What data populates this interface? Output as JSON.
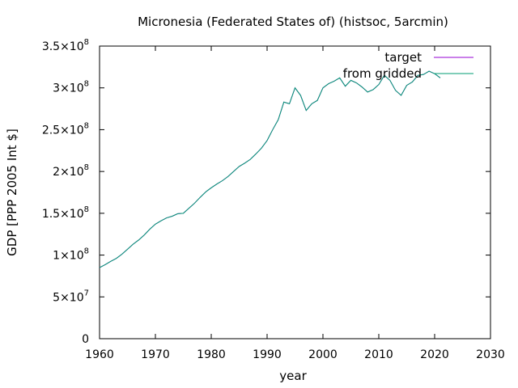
{
  "chart_data": {
    "type": "line",
    "title": "Micronesia (Federated States of) (histsoc, 5arcmin)",
    "xlabel": "year",
    "ylabel": "GDP [PPP 2005 Int $]",
    "xlim": [
      1960,
      2030
    ],
    "ylim": [
      0,
      350000000
    ],
    "grid": false,
    "legend_position": "top-right",
    "x_ticks": [
      {
        "value": 1960,
        "label": "1960"
      },
      {
        "value": 1970,
        "label": "1970"
      },
      {
        "value": 1980,
        "label": "1980"
      },
      {
        "value": 1990,
        "label": "1990"
      },
      {
        "value": 2000,
        "label": "2000"
      },
      {
        "value": 2010,
        "label": "2010"
      },
      {
        "value": 2020,
        "label": "2020"
      },
      {
        "value": 2030,
        "label": "2030"
      }
    ],
    "y_ticks": [
      {
        "value": 0,
        "mantissa": "0",
        "exponent": ""
      },
      {
        "value": 50000000,
        "mantissa": "5×10",
        "exponent": "7"
      },
      {
        "value": 100000000,
        "mantissa": "1×10",
        "exponent": "8"
      },
      {
        "value": 150000000,
        "mantissa": "1.5×10",
        "exponent": "8"
      },
      {
        "value": 200000000,
        "mantissa": "2×10",
        "exponent": "8"
      },
      {
        "value": 250000000,
        "mantissa": "2.5×10",
        "exponent": "8"
      },
      {
        "value": 300000000,
        "mantissa": "3×10",
        "exponent": "8"
      },
      {
        "value": 350000000,
        "mantissa": "3.5×10",
        "exponent": "8"
      }
    ],
    "x": [
      1960,
      1961,
      1962,
      1963,
      1964,
      1965,
      1966,
      1967,
      1968,
      1969,
      1970,
      1971,
      1972,
      1973,
      1974,
      1975,
      1976,
      1977,
      1978,
      1979,
      1980,
      1981,
      1982,
      1983,
      1984,
      1985,
      1986,
      1987,
      1988,
      1989,
      1990,
      1991,
      1992,
      1993,
      1994,
      1995,
      1996,
      1997,
      1998,
      1999,
      2000,
      2001,
      2002,
      2003,
      2004,
      2005,
      2006,
      2007,
      2008,
      2009,
      2010,
      2011,
      2012,
      2013,
      2014,
      2015,
      2016,
      2017,
      2018,
      2019,
      2020,
      2021
    ],
    "series": [
      {
        "name": "target",
        "color": "#9400d3",
        "values": [
          85000000,
          88500000,
          92500000,
          96000000,
          101000000,
          107000000,
          113000000,
          118000000,
          124000000,
          131000000,
          137000000,
          141000000,
          144500000,
          146500000,
          149500000,
          150000000,
          156000000,
          162000000,
          169000000,
          175500000,
          180500000,
          185000000,
          189000000,
          194000000,
          200000000,
          206000000,
          210000000,
          214500000,
          221000000,
          228000000,
          237000000,
          250000000,
          262000000,
          283000000,
          281000000,
          300000000,
          291000000,
          273000000,
          281000000,
          285000000,
          300000000,
          305000000,
          308000000,
          312000000,
          302000000,
          309000000,
          306000000,
          301000000,
          295000000,
          298000000,
          304000000,
          315000000,
          309000000,
          297000000,
          291000000,
          303000000,
          307000000,
          315000000,
          316000000,
          320000000,
          317000000,
          312000000
        ]
      },
      {
        "name": "from gridded",
        "color": "#009e73",
        "values": [
          85000000,
          88500000,
          92500000,
          96000000,
          101000000,
          107000000,
          113000000,
          118000000,
          124000000,
          131000000,
          137000000,
          141000000,
          144500000,
          146500000,
          149500000,
          150000000,
          156000000,
          162000000,
          169000000,
          175500000,
          180500000,
          185000000,
          189000000,
          194000000,
          200000000,
          206000000,
          210000000,
          214500000,
          221000000,
          228000000,
          237000000,
          250000000,
          262000000,
          283000000,
          281000000,
          300000000,
          291000000,
          273000000,
          281000000,
          285000000,
          300000000,
          305000000,
          308000000,
          312000000,
          302000000,
          309000000,
          306000000,
          301000000,
          295000000,
          298000000,
          304000000,
          315000000,
          309000000,
          297000000,
          291000000,
          303000000,
          307000000,
          315000000,
          316000000,
          320000000,
          317000000,
          312000000
        ]
      }
    ]
  }
}
